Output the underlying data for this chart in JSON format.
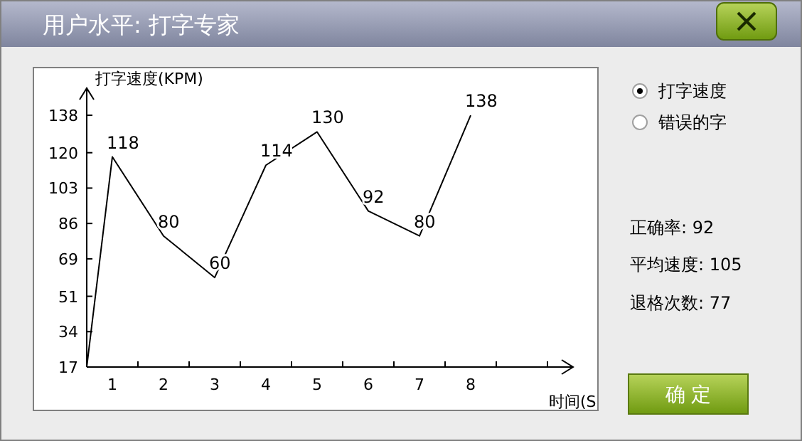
{
  "chart_data": {
    "type": "line",
    "title": "用户水平:  打字专家",
    "ylabel": "打字速度(KPM)",
    "xlabel": "时间(S",
    "x": [
      0.5,
      1,
      2,
      3,
      4,
      5,
      6,
      7,
      8
    ],
    "series": [
      {
        "color": "#000000",
        "values": [
          17,
          118,
          80,
          60,
          114,
          130,
          92,
          80,
          138
        ],
        "value_labels": [
          null,
          "118",
          "80",
          "60",
          "114",
          "130",
          "92",
          "80",
          "138"
        ]
      }
    ],
    "xlim": [
      0.5,
      10
    ],
    "xticks": [
      1,
      2,
      3,
      4,
      5,
      6,
      7,
      8
    ],
    "ylim": [
      17,
      151
    ],
    "yticks": [
      17,
      34,
      51,
      69,
      86,
      103,
      120,
      138
    ],
    "grid": false,
    "marker": "none",
    "line_style": "solid",
    "annotations": [
      "打字速度",
      "错误的字",
      "正确率:  92",
      "平均速度: 105",
      "退格次数: 77",
      "确  定"
    ]
  }
}
